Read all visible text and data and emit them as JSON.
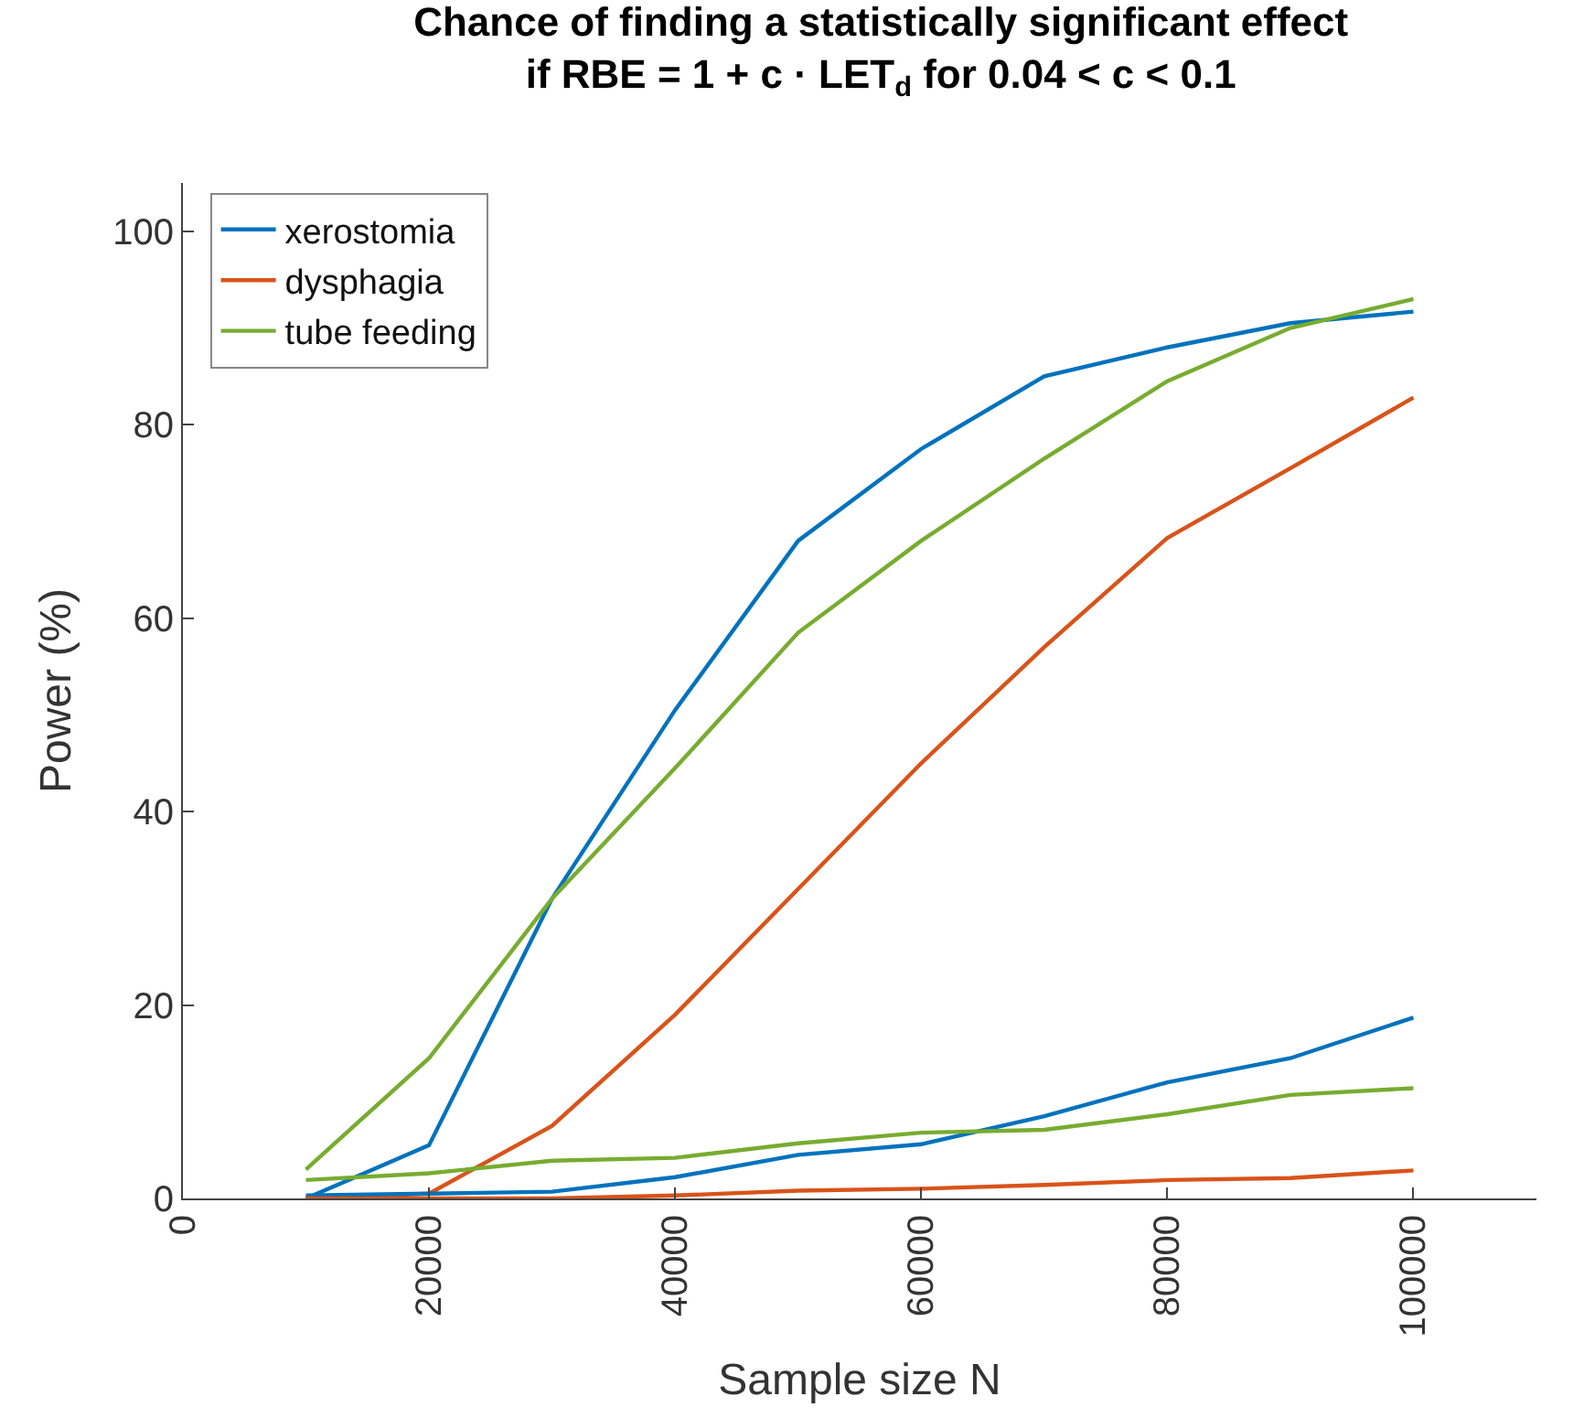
{
  "chart_data": {
    "type": "line",
    "title": "Chance of finding a statistically significant effect\nif RBE = 1 + c · LET$_{d}$ for 0.04 < c < 0.1",
    "xlabel": "Sample size N",
    "ylabel": "Power (%)",
    "x": [
      10000,
      20000,
      30000,
      40000,
      50000,
      60000,
      70000,
      80000,
      90000,
      100000
    ],
    "series": [
      {
        "name": "xerostomia",
        "color": "#0072bd",
        "values": [
          0,
          5.5,
          31,
          50.5,
          68,
          77.5,
          85,
          88,
          90.5,
          91.7
        ]
      },
      {
        "name": "dysphagia",
        "color": "#d95319",
        "values": [
          0,
          0.5,
          7.5,
          19,
          32,
          45,
          57,
          68.3,
          75.5,
          82.8
        ]
      },
      {
        "name": "tube feeding",
        "color": "#77ac30",
        "values": [
          3,
          14.5,
          31,
          44.5,
          58.5,
          68,
          76.5,
          84.5,
          90,
          93
        ]
      },
      {
        "color": "#0072bd",
        "values": [
          0.3,
          0.5,
          0.7,
          2.2,
          4.5,
          5.6,
          8.5,
          12,
          14.5,
          18.7
        ]
      },
      {
        "color": "#d95319",
        "values": [
          0,
          0,
          0,
          0.3,
          0.8,
          1,
          1.4,
          1.9,
          2.1,
          2.9
        ]
      },
      {
        "color": "#77ac30",
        "values": [
          1.9,
          2.6,
          3.9,
          4.2,
          5.7,
          6.8,
          7.1,
          8.7,
          10.7,
          11.4
        ]
      }
    ],
    "xlim": [
      0,
      110000
    ],
    "xticks": [
      0,
      20000,
      40000,
      60000,
      80000,
      100000
    ],
    "ylim": [
      0,
      105
    ],
    "yticks": [
      0,
      20,
      40,
      60,
      80,
      100
    ],
    "legend": "top left",
    "line_style": "solid"
  }
}
